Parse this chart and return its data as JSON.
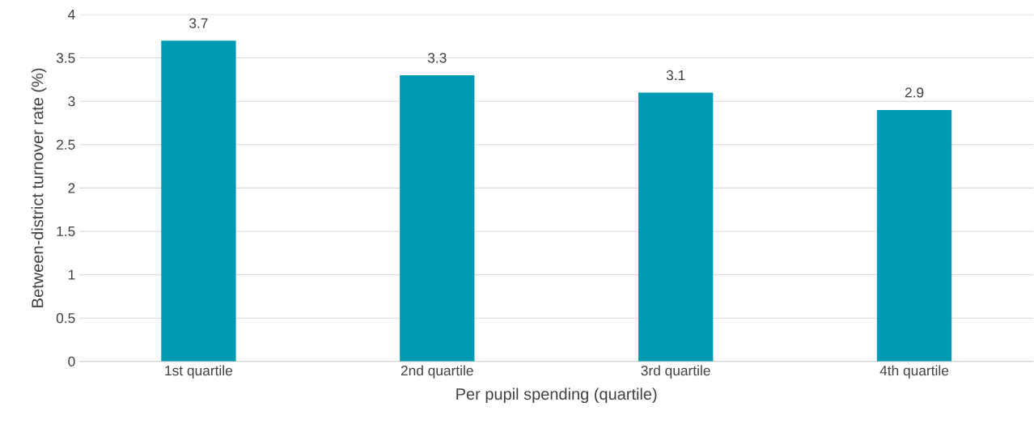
{
  "chart_data": {
    "type": "bar",
    "xlabel": "Per pupil spending (quartile)",
    "ylabel": "Between-district turnover rate (%)",
    "categories": [
      "1st quartile",
      "2nd quartile",
      "3rd quartile",
      "4th quartile"
    ],
    "values": [
      3.7,
      3.3,
      3.1,
      2.9
    ],
    "color": "#009ab5",
    "ylim": [
      0,
      4
    ],
    "yticks": [
      0,
      0.5,
      1,
      1.5,
      2,
      2.5,
      3,
      3.5,
      4
    ],
    "grid": "y",
    "data_labels": true
  }
}
